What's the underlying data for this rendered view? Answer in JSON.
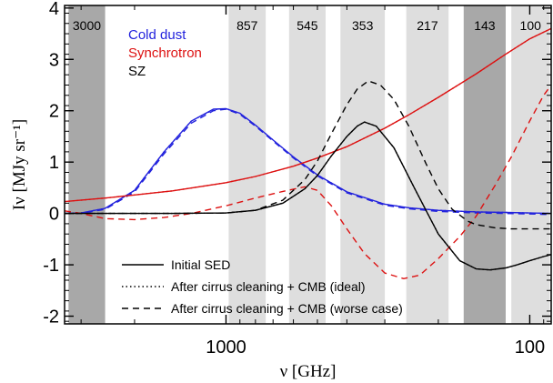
{
  "chart_data": {
    "type": "line",
    "xlabel": "ν [GHz]",
    "ylabel": "Iν [MJy sr⁻¹]",
    "xscale": "log",
    "x_direction": "decreasing",
    "xlim": [
      3400,
      85
    ],
    "ylim": [
      -2.15,
      4.05
    ],
    "y_ticks": [
      -2,
      -1,
      0,
      1,
      2,
      3,
      4
    ],
    "y_tick_labels": [
      "-2",
      "-1",
      "0",
      "1",
      "2",
      "3",
      "4"
    ],
    "x_ticks": [
      1000,
      100
    ],
    "x_tick_labels": [
      "1000",
      "100"
    ],
    "bands": [
      {
        "label": "3000",
        "lo": 2500,
        "hi": 3300,
        "color": "#a8a8a8"
      },
      {
        "label": "857",
        "lo": 740,
        "hi": 980,
        "color": "#dedede"
      },
      {
        "label": "545",
        "lo": 470,
        "hi": 620,
        "color": "#dedede"
      },
      {
        "label": "353",
        "lo": 300,
        "hi": 420,
        "color": "#dedede"
      },
      {
        "label": "217",
        "lo": 185,
        "hi": 255,
        "color": "#dedede"
      },
      {
        "label": "143",
        "lo": 120,
        "hi": 165,
        "color": "#a8a8a8"
      },
      {
        "label": "100",
        "lo": 86,
        "hi": 115,
        "color": "#dedede"
      }
    ],
    "components": [
      {
        "name": "Cold dust",
        "color": "#2222dd"
      },
      {
        "name": "Synchrotron",
        "color": "#dd1111"
      },
      {
        "name": "SZ",
        "color": "#000000"
      }
    ],
    "legend": [
      {
        "label": "Initial SED",
        "style": "solid"
      },
      {
        "label": "After cirrus cleaning + CMB (ideal)",
        "style": "dotted"
      },
      {
        "label": "After cirrus cleaning + CMB (worse case)",
        "style": "dashed"
      }
    ],
    "series": [
      {
        "component": "Cold dust",
        "variant": "initial",
        "color": "#2222dd",
        "dash": "solid",
        "x": [
          3400,
          3000,
          2500,
          2000,
          1600,
          1300,
          1100,
          1000,
          900,
          800,
          700,
          600,
          500,
          400,
          300,
          250,
          200,
          150,
          120,
          100,
          85
        ],
        "y": [
          0.0,
          0.01,
          0.1,
          0.45,
          1.2,
          1.8,
          2.03,
          2.04,
          1.95,
          1.72,
          1.43,
          1.1,
          0.75,
          0.42,
          0.18,
          0.11,
          0.06,
          0.03,
          0.02,
          0.01,
          0.0
        ]
      },
      {
        "component": "Cold dust",
        "variant": "ideal",
        "color": "#2222dd",
        "dash": "dotted",
        "x": [
          3400,
          3000,
          2500,
          2000,
          1600,
          1300,
          1100,
          1000,
          900,
          800,
          700,
          600,
          500,
          400,
          300,
          250,
          200,
          150,
          120,
          100,
          85
        ],
        "y": [
          0.0,
          0.01,
          0.1,
          0.45,
          1.2,
          1.8,
          2.02,
          2.04,
          1.95,
          1.72,
          1.43,
          1.1,
          0.75,
          0.42,
          0.18,
          0.11,
          0.06,
          0.03,
          0.02,
          0.01,
          0.0
        ]
      },
      {
        "component": "Cold dust",
        "variant": "worse",
        "color": "#2222dd",
        "dash": "dashed",
        "x": [
          3400,
          3000,
          2500,
          2000,
          1600,
          1300,
          1100,
          1000,
          900,
          800,
          700,
          600,
          500,
          400,
          300,
          250,
          200,
          150,
          120,
          100,
          85
        ],
        "y": [
          0.0,
          0.0,
          0.08,
          0.42,
          1.16,
          1.76,
          2.0,
          2.03,
          1.93,
          1.7,
          1.41,
          1.08,
          0.73,
          0.4,
          0.16,
          0.09,
          0.04,
          0.01,
          0.0,
          -0.01,
          -0.02
        ]
      },
      {
        "component": "Synchrotron",
        "variant": "initial",
        "color": "#dd1111",
        "dash": "solid",
        "x": [
          3400,
          2500,
          2000,
          1500,
          1000,
          800,
          600,
          500,
          400,
          300,
          250,
          200,
          150,
          120,
          100,
          85
        ],
        "y": [
          0.23,
          0.3,
          0.36,
          0.44,
          0.6,
          0.72,
          0.92,
          1.08,
          1.3,
          1.66,
          1.92,
          2.26,
          2.72,
          3.1,
          3.4,
          3.6
        ]
      },
      {
        "component": "Synchrotron",
        "variant": "ideal",
        "color": "#dd1111",
        "dash": "dotted",
        "x": [
          3400,
          2500,
          2000,
          1500,
          1000,
          800,
          600,
          500,
          400,
          300,
          250,
          200,
          150,
          120,
          100,
          85
        ],
        "y": [
          0.23,
          0.3,
          0.36,
          0.44,
          0.6,
          0.72,
          0.92,
          1.08,
          1.3,
          1.66,
          1.92,
          2.26,
          2.72,
          3.1,
          3.4,
          3.6
        ]
      },
      {
        "component": "Synchrotron",
        "variant": "worse",
        "color": "#dd1111",
        "dash": "dashed",
        "x": [
          3400,
          3000,
          2500,
          2000,
          1600,
          1300,
          1000,
          800,
          650,
          550,
          500,
          450,
          400,
          350,
          300,
          260,
          230,
          200,
          170,
          150,
          130,
          115,
          100,
          90,
          85
        ],
        "y": [
          0.05,
          0.0,
          -0.1,
          -0.12,
          -0.08,
          0.0,
          0.15,
          0.3,
          0.43,
          0.52,
          0.45,
          0.15,
          -0.3,
          -0.78,
          -1.16,
          -1.27,
          -1.2,
          -0.88,
          -0.45,
          -0.05,
          0.55,
          1.1,
          1.8,
          2.3,
          2.5
        ]
      },
      {
        "component": "SZ",
        "variant": "initial",
        "color": "#000000",
        "dash": "solid",
        "x": [
          3400,
          1500,
          1000,
          800,
          650,
          550,
          500,
          450,
          400,
          370,
          350,
          320,
          280,
          240,
          217,
          200,
          170,
          150,
          135,
          120,
          110,
          100,
          90,
          85
        ],
        "y": [
          0.0,
          0.0,
          0.01,
          0.06,
          0.2,
          0.48,
          0.74,
          1.12,
          1.5,
          1.7,
          1.78,
          1.7,
          1.28,
          0.5,
          0.0,
          -0.4,
          -0.92,
          -1.08,
          -1.1,
          -1.06,
          -1.0,
          -0.92,
          -0.84,
          -0.8
        ]
      },
      {
        "component": "SZ",
        "variant": "ideal",
        "color": "#000000",
        "dash": "dotted",
        "x": [
          3400,
          1500,
          1000,
          800,
          650,
          550,
          500,
          450,
          400,
          370,
          350,
          320,
          280,
          240,
          217,
          200,
          170,
          150,
          135,
          120,
          110,
          100,
          90,
          85
        ],
        "y": [
          0.0,
          0.0,
          0.01,
          0.06,
          0.2,
          0.48,
          0.74,
          1.12,
          1.5,
          1.7,
          1.78,
          1.7,
          1.28,
          0.5,
          0.0,
          -0.4,
          -0.92,
          -1.08,
          -1.1,
          -1.06,
          -1.0,
          -0.92,
          -0.84,
          -0.8
        ]
      },
      {
        "component": "SZ",
        "variant": "worse",
        "color": "#000000",
        "dash": "dashed",
        "x": [
          3400,
          1500,
          1000,
          800,
          650,
          550,
          500,
          450,
          400,
          370,
          340,
          310,
          280,
          250,
          220,
          200,
          180,
          160,
          150,
          130,
          115,
          100,
          90,
          85
        ],
        "y": [
          0.0,
          0.0,
          0.01,
          0.06,
          0.26,
          0.66,
          1.02,
          1.55,
          2.12,
          2.42,
          2.58,
          2.5,
          2.22,
          1.7,
          0.98,
          0.48,
          0.08,
          -0.15,
          -0.22,
          -0.28,
          -0.3,
          -0.3,
          -0.3,
          -0.3
        ]
      }
    ]
  }
}
